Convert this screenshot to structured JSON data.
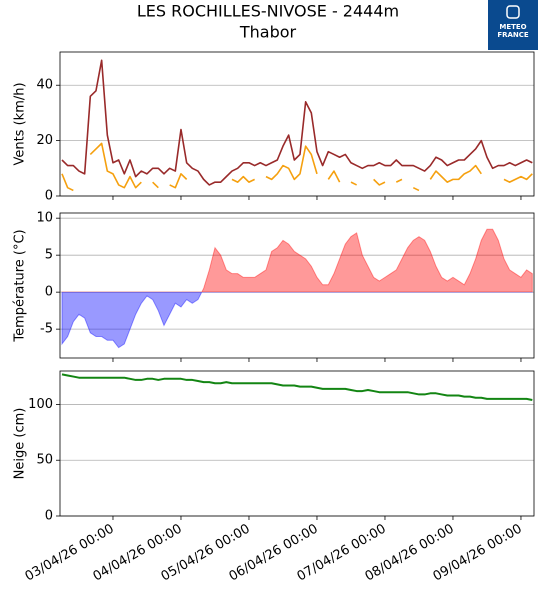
{
  "logo": {
    "line1": "METEO",
    "line2": "FRANCE"
  },
  "chart_data": [
    {
      "type": "line",
      "title": "LES ROCHILLES-NIVOSE - 2444m",
      "subtitle": "Thabor",
      "ylabel": "Vents (km/h)",
      "x": [
        "02/04/26 06:00",
        "02/04/26 08:00",
        "02/04/26 10:00",
        "02/04/26 12:00",
        "02/04/26 14:00",
        "02/04/26 16:00",
        "02/04/26 18:00",
        "02/04/26 20:00",
        "02/04/26 22:00",
        "03/04/26 00:00",
        "03/04/26 02:00",
        "03/04/26 04:00",
        "03/04/26 06:00",
        "03/04/26 08:00",
        "03/04/26 10:00",
        "03/04/26 12:00",
        "03/04/26 14:00",
        "03/04/26 16:00",
        "03/04/26 18:00",
        "03/04/26 20:00",
        "03/04/26 22:00",
        "04/04/26 00:00",
        "04/04/26 02:00",
        "04/04/26 04:00",
        "04/04/26 06:00",
        "04/04/26 08:00",
        "04/04/26 10:00",
        "04/04/26 12:00",
        "04/04/26 14:00",
        "04/04/26 16:00",
        "04/04/26 18:00",
        "04/04/26 20:00",
        "04/04/26 22:00",
        "05/04/26 00:00",
        "05/04/26 02:00",
        "05/04/26 04:00",
        "05/04/26 06:00",
        "05/04/26 08:00",
        "05/04/26 10:00",
        "05/04/26 12:00",
        "05/04/26 14:00",
        "05/04/26 16:00",
        "05/04/26 18:00",
        "05/04/26 20:00",
        "05/04/26 22:00",
        "06/04/26 00:00",
        "06/04/26 02:00",
        "06/04/26 04:00",
        "06/04/26 06:00",
        "06/04/26 08:00",
        "06/04/26 10:00",
        "06/04/26 12:00",
        "06/04/26 14:00",
        "06/04/26 16:00",
        "06/04/26 18:00",
        "06/04/26 20:00",
        "06/04/26 22:00",
        "07/04/26 00:00",
        "07/04/26 02:00",
        "07/04/26 04:00",
        "07/04/26 06:00",
        "07/04/26 08:00",
        "07/04/26 10:00",
        "07/04/26 12:00",
        "07/04/26 14:00",
        "07/04/26 16:00",
        "07/04/26 18:00",
        "07/04/26 20:00",
        "07/04/26 22:00",
        "08/04/26 00:00",
        "08/04/26 02:00",
        "08/04/26 04:00",
        "08/04/26 06:00",
        "08/04/26 08:00",
        "08/04/26 10:00",
        "08/04/26 12:00",
        "08/04/26 14:00",
        "08/04/26 16:00",
        "08/04/26 18:00",
        "08/04/26 20:00",
        "08/04/26 22:00",
        "09/04/26 00:00",
        "09/04/26 02:00",
        "09/04/26 04:00"
      ],
      "series": [
        {
          "color": "#992a2a",
          "values": [
            13,
            11,
            11,
            9,
            8,
            36,
            38,
            49,
            22,
            12,
            13,
            8,
            13,
            7,
            9,
            8,
            10,
            10,
            8,
            10,
            9,
            24,
            12,
            10,
            9,
            6,
            4,
            5,
            5,
            7,
            9,
            10,
            12,
            12,
            11,
            12,
            11,
            12,
            13,
            18,
            22,
            13,
            15,
            34,
            30,
            16,
            11,
            16,
            15,
            14,
            15,
            12,
            11,
            10,
            11,
            11,
            12,
            11,
            11,
            13,
            11,
            11,
            11,
            10,
            9,
            11,
            14,
            13,
            11,
            12,
            13,
            13,
            15,
            17,
            20,
            14,
            10,
            11,
            11,
            12,
            11,
            12,
            13,
            12
          ]
        },
        {
          "color": "#f5a00f",
          "values": [
            8,
            3,
            2,
            null,
            null,
            15,
            17,
            19,
            9,
            8,
            4,
            3,
            7,
            3,
            5,
            null,
            5,
            3,
            null,
            4,
            3,
            8,
            6,
            null,
            4,
            null,
            null,
            null,
            null,
            null,
            6,
            5,
            7,
            5,
            6,
            null,
            7,
            6,
            8,
            11,
            10,
            6,
            8,
            18,
            15,
            8,
            null,
            6,
            9,
            5,
            null,
            5,
            4,
            null,
            null,
            6,
            4,
            5,
            null,
            5,
            6,
            null,
            3,
            2,
            null,
            6,
            9,
            7,
            5,
            6,
            6,
            8,
            9,
            11,
            8,
            null,
            4,
            null,
            6,
            5,
            6,
            7,
            6,
            8
          ]
        }
      ],
      "xlim": [
        "02/04/26 05:18",
        "09/04/26 04:36"
      ],
      "ylim": [
        0,
        52
      ],
      "yticks": [
        0,
        20,
        40
      ],
      "grid": true
    },
    {
      "type": "area",
      "ylabel": "Température (°C)",
      "x": [
        "02/04/26 06:00",
        "02/04/26 08:00",
        "02/04/26 10:00",
        "02/04/26 12:00",
        "02/04/26 14:00",
        "02/04/26 16:00",
        "02/04/26 18:00",
        "02/04/26 20:00",
        "02/04/26 22:00",
        "03/04/26 00:00",
        "03/04/26 02:00",
        "03/04/26 04:00",
        "03/04/26 06:00",
        "03/04/26 08:00",
        "03/04/26 10:00",
        "03/04/26 12:00",
        "03/04/26 14:00",
        "03/04/26 16:00",
        "03/04/26 18:00",
        "03/04/26 20:00",
        "03/04/26 22:00",
        "04/04/26 00:00",
        "04/04/26 02:00",
        "04/04/26 04:00",
        "04/04/26 06:00",
        "04/04/26 08:00",
        "04/04/26 10:00",
        "04/04/26 12:00",
        "04/04/26 14:00",
        "04/04/26 16:00",
        "04/04/26 18:00",
        "04/04/26 20:00",
        "04/04/26 22:00",
        "05/04/26 00:00",
        "05/04/26 02:00",
        "05/04/26 04:00",
        "05/04/26 06:00",
        "05/04/26 08:00",
        "05/04/26 10:00",
        "05/04/26 12:00",
        "05/04/26 14:00",
        "05/04/26 16:00",
        "05/04/26 18:00",
        "05/04/26 20:00",
        "05/04/26 22:00",
        "06/04/26 00:00",
        "06/04/26 02:00",
        "06/04/26 04:00",
        "06/04/26 06:00",
        "06/04/26 08:00",
        "06/04/26 10:00",
        "06/04/26 12:00",
        "06/04/26 14:00",
        "06/04/26 16:00",
        "06/04/26 18:00",
        "06/04/26 20:00",
        "06/04/26 22:00",
        "07/04/26 00:00",
        "07/04/26 02:00",
        "07/04/26 04:00",
        "07/04/26 06:00",
        "07/04/26 08:00",
        "07/04/26 10:00",
        "07/04/26 12:00",
        "07/04/26 14:00",
        "07/04/26 16:00",
        "07/04/26 18:00",
        "07/04/26 20:00",
        "07/04/26 22:00",
        "08/04/26 00:00",
        "08/04/26 02:00",
        "08/04/26 04:00",
        "08/04/26 06:00",
        "08/04/26 08:00",
        "08/04/26 10:00",
        "08/04/26 12:00",
        "08/04/26 14:00",
        "08/04/26 16:00",
        "08/04/26 18:00",
        "08/04/26 20:00",
        "08/04/26 22:00",
        "09/04/26 00:00",
        "09/04/26 02:00",
        "09/04/26 04:00"
      ],
      "series": [
        {
          "positive_color": "#ff0000",
          "negative_color": "#0000ff",
          "values": [
            -7,
            -6,
            -4,
            -3,
            -3.5,
            -5.5,
            -6,
            -6,
            -6.5,
            -6.5,
            -7.5,
            -7,
            -5,
            -3,
            -1.5,
            -0.5,
            -1,
            -2.5,
            -4.5,
            -3,
            -1.5,
            -2,
            -1,
            -1.5,
            -1,
            0.5,
            3,
            6,
            5,
            3,
            2.5,
            2.5,
            2,
            2,
            2,
            2.5,
            3,
            5.5,
            6,
            7,
            6.5,
            5.5,
            5,
            4.5,
            3.5,
            2,
            1,
            1,
            2.5,
            4.5,
            6.5,
            7.5,
            8,
            5,
            3.5,
            2,
            1.5,
            2,
            2.5,
            3,
            4.5,
            6,
            7,
            7.5,
            7,
            5.5,
            3.5,
            2,
            1.5,
            2,
            1.5,
            1,
            2.5,
            4.5,
            7,
            8.5,
            8.5,
            7,
            4.5,
            3,
            2.5,
            2,
            3,
            2.5
          ]
        }
      ],
      "xlim": [
        "02/04/26 05:18",
        "09/04/26 04:36"
      ],
      "ylim": [
        -8.9,
        10.7
      ],
      "yticks": [
        -5,
        0,
        5,
        10
      ],
      "grid": true
    },
    {
      "type": "line",
      "ylabel": "Neige (cm)",
      "x": [
        "02/04/26 06:00",
        "02/04/26 08:00",
        "02/04/26 10:00",
        "02/04/26 12:00",
        "02/04/26 14:00",
        "02/04/26 16:00",
        "02/04/26 18:00",
        "02/04/26 20:00",
        "02/04/26 22:00",
        "03/04/26 00:00",
        "03/04/26 02:00",
        "03/04/26 04:00",
        "03/04/26 06:00",
        "03/04/26 08:00",
        "03/04/26 10:00",
        "03/04/26 12:00",
        "03/04/26 14:00",
        "03/04/26 16:00",
        "03/04/26 18:00",
        "03/04/26 20:00",
        "03/04/26 22:00",
        "04/04/26 00:00",
        "04/04/26 02:00",
        "04/04/26 04:00",
        "04/04/26 06:00",
        "04/04/26 08:00",
        "04/04/26 10:00",
        "04/04/26 12:00",
        "04/04/26 14:00",
        "04/04/26 16:00",
        "04/04/26 18:00",
        "04/04/26 20:00",
        "04/04/26 22:00",
        "05/04/26 00:00",
        "05/04/26 02:00",
        "05/04/26 04:00",
        "05/04/26 06:00",
        "05/04/26 08:00",
        "05/04/26 10:00",
        "05/04/26 12:00",
        "05/04/26 14:00",
        "05/04/26 16:00",
        "05/04/26 18:00",
        "05/04/26 20:00",
        "05/04/26 22:00",
        "06/04/26 00:00",
        "06/04/26 02:00",
        "06/04/26 04:00",
        "06/04/26 06:00",
        "06/04/26 08:00",
        "06/04/26 10:00",
        "06/04/26 12:00",
        "06/04/26 14:00",
        "06/04/26 16:00",
        "06/04/26 18:00",
        "06/04/26 20:00",
        "06/04/26 22:00",
        "07/04/26 00:00",
        "07/04/26 02:00",
        "07/04/26 04:00",
        "07/04/26 06:00",
        "07/04/26 08:00",
        "07/04/26 10:00",
        "07/04/26 12:00",
        "07/04/26 14:00",
        "07/04/26 16:00",
        "07/04/26 18:00",
        "07/04/26 20:00",
        "07/04/26 22:00",
        "08/04/26 00:00",
        "08/04/26 02:00",
        "08/04/26 04:00",
        "08/04/26 06:00",
        "08/04/26 08:00",
        "08/04/26 10:00",
        "08/04/26 12:00",
        "08/04/26 14:00",
        "08/04/26 16:00",
        "08/04/26 18:00",
        "08/04/26 20:00",
        "08/04/26 22:00",
        "09/04/26 00:00",
        "09/04/26 02:00",
        "09/04/26 04:00"
      ],
      "series": [
        {
          "color": "#138513",
          "values": [
            127,
            126,
            125,
            124,
            124,
            124,
            124,
            124,
            124,
            124,
            124,
            124,
            123,
            122,
            122,
            123,
            123,
            122,
            123,
            123,
            123,
            123,
            122,
            122,
            121,
            120,
            120,
            119,
            119,
            120,
            119,
            119,
            119,
            119,
            119,
            119,
            119,
            119,
            118,
            117,
            117,
            117,
            116,
            116,
            116,
            115,
            114,
            114,
            114,
            114,
            114,
            113,
            112,
            112,
            113,
            112,
            111,
            111,
            111,
            111,
            111,
            111,
            110,
            109,
            109,
            110,
            110,
            109,
            108,
            108,
            108,
            107,
            107,
            106,
            106,
            105,
            105,
            105,
            105,
            105,
            105,
            105,
            105,
            104
          ]
        }
      ],
      "xlim": [
        "02/04/26 05:18",
        "09/04/26 04:36"
      ],
      "ylim": [
        0,
        130
      ],
      "yticks": [
        0,
        50,
        100
      ],
      "grid": true,
      "xticks": [
        "03/04/26 00:00",
        "04/04/26 00:00",
        "05/04/26 00:00",
        "06/04/26 00:00",
        "07/04/26 00:00",
        "08/04/26 00:00",
        "09/04/26 00:00"
      ]
    }
  ]
}
